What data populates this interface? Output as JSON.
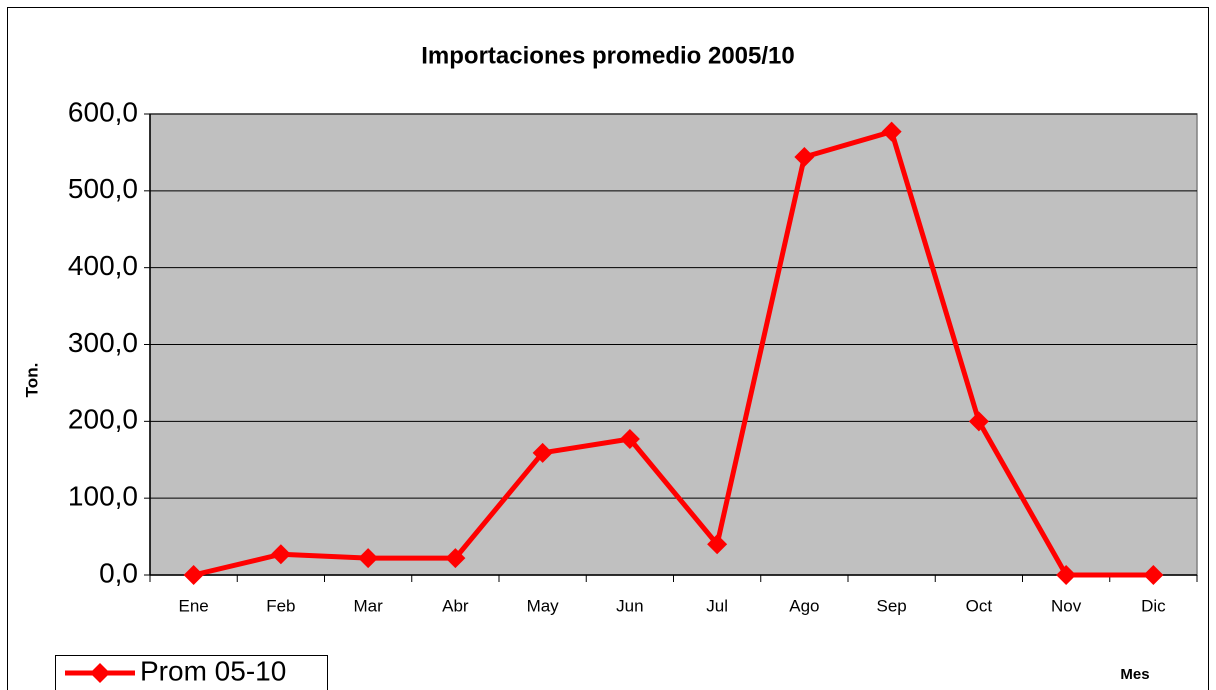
{
  "chart_data": {
    "type": "line",
    "title": "Importaciones promedio 2005/10",
    "x_label": "Mes",
    "y_label": "Ton.",
    "categories": [
      "Ene",
      "Feb",
      "Mar",
      "Abr",
      "May",
      "Jun",
      "Jul",
      "Ago",
      "Sep",
      "Oct",
      "Nov",
      "Dic"
    ],
    "series": [
      {
        "name": "Prom 05-10",
        "color": "#ff0000",
        "values": [
          0,
          27,
          22,
          22,
          159,
          177,
          40,
          544,
          577,
          200,
          0,
          0
        ]
      }
    ],
    "ylim": [
      0,
      600
    ],
    "yticks": [
      {
        "value": 0,
        "label": "0,0"
      },
      {
        "value": 100,
        "label": "100,0"
      },
      {
        "value": 200,
        "label": "200,0"
      },
      {
        "value": 300,
        "label": "300,0"
      },
      {
        "value": 400,
        "label": "400,0"
      },
      {
        "value": 500,
        "label": "500,0"
      },
      {
        "value": 600,
        "label": "600,0"
      }
    ],
    "grid": true,
    "background": "#c0c0c0",
    "legend": "bottom-left"
  }
}
